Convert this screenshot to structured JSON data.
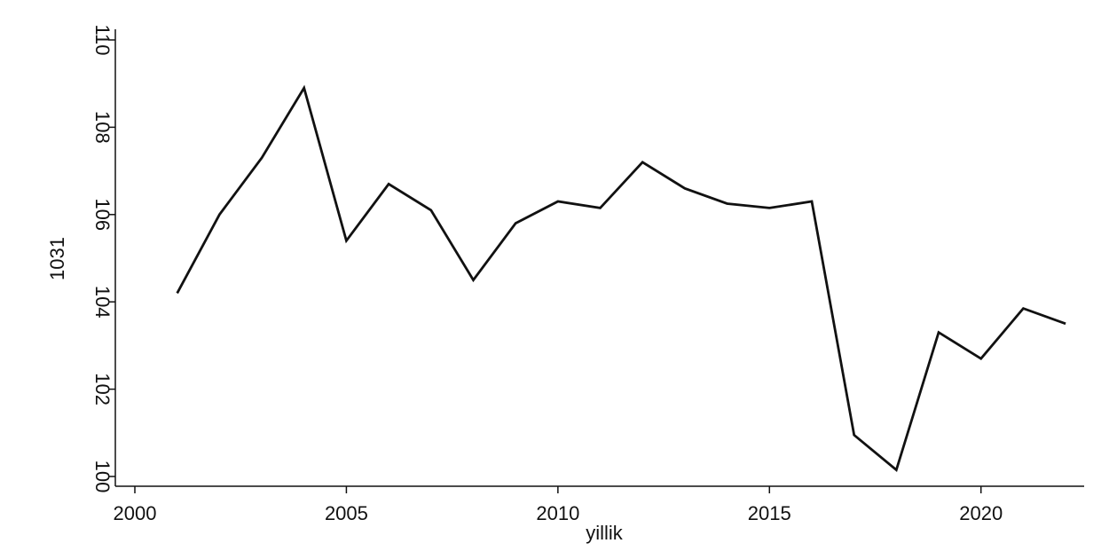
{
  "chart_data": {
    "type": "line",
    "title": "",
    "xlabel": "yillik",
    "ylabel": "1031",
    "xlim": [
      2000,
      2022
    ],
    "ylim": [
      100,
      110
    ],
    "xticks": [
      2000,
      2005,
      2010,
      2015,
      2020
    ],
    "xtick_labels": [
      "2000",
      "2005",
      "2010",
      "2015",
      "2020"
    ],
    "yticks": [
      100,
      102,
      104,
      106,
      108,
      110
    ],
    "ytick_labels": [
      "100",
      "102",
      "104",
      "106",
      "108",
      "110"
    ],
    "grid": false,
    "series": [
      {
        "color": "#111111",
        "x": [
          2001,
          2002,
          2003,
          2004,
          2005,
          2006,
          2007,
          2008,
          2009,
          2010,
          2011,
          2012,
          2013,
          2014,
          2015,
          2016,
          2017,
          2018,
          2019,
          2020,
          2021,
          2022
        ],
        "y": [
          104.2,
          106.0,
          107.3,
          108.9,
          105.4,
          106.7,
          106.1,
          104.5,
          105.8,
          106.3,
          106.15,
          107.2,
          106.6,
          106.25,
          106.15,
          106.3,
          100.95,
          100.15,
          103.3,
          102.7,
          103.85,
          103.5
        ]
      }
    ]
  }
}
